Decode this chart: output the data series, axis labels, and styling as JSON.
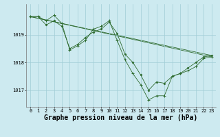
{
  "title": "Graphe pression niveau de la mer (hPa)",
  "background_color": "#cdeaf0",
  "grid_color": "#a0cdd6",
  "line_color": "#2d6a2d",
  "marker_color": "#2d6a2d",
  "xlim": [
    -0.5,
    23.5
  ],
  "ylim": [
    1016.4,
    1020.1
  ],
  "yticks": [
    1017,
    1018,
    1019
  ],
  "xticks": [
    0,
    1,
    2,
    3,
    4,
    5,
    6,
    7,
    8,
    9,
    10,
    11,
    12,
    13,
    14,
    15,
    16,
    17,
    18,
    19,
    20,
    21,
    22,
    23
  ],
  "series": [
    {
      "x": [
        0,
        1,
        2,
        3,
        4,
        5,
        6,
        7,
        8,
        9,
        10,
        11,
        12,
        13,
        14,
        15,
        16,
        17,
        18,
        19,
        20,
        21,
        22,
        23
      ],
      "y": [
        1019.65,
        1019.65,
        1019.5,
        1019.7,
        1019.4,
        1018.45,
        1018.6,
        1018.8,
        1019.2,
        1019.3,
        1019.5,
        1018.8,
        1018.1,
        1017.6,
        1017.2,
        1016.65,
        1016.8,
        1016.8,
        1017.5,
        1017.6,
        1017.7,
        1017.85,
        1018.15,
        1018.2
      ],
      "marker": "+"
    },
    {
      "x": [
        0,
        1,
        2,
        3,
        4,
        5,
        6,
        7,
        8,
        9,
        10,
        11,
        12,
        13,
        14,
        15,
        16,
        17,
        18,
        19,
        20,
        21,
        22,
        23
      ],
      "y": [
        1019.65,
        1019.65,
        1019.35,
        1019.5,
        1019.3,
        1018.5,
        1018.65,
        1018.9,
        1019.1,
        1019.2,
        1019.45,
        1019.05,
        1018.3,
        1018.0,
        1017.55,
        1017.0,
        1017.3,
        1017.25,
        1017.5,
        1017.6,
        1017.8,
        1018.0,
        1018.2,
        1018.25
      ],
      "marker": "D"
    },
    {
      "x": [
        0,
        23
      ],
      "y": [
        1019.65,
        1018.2
      ],
      "marker": null
    },
    {
      "x": [
        0,
        23
      ],
      "y": [
        1019.65,
        1018.25
      ],
      "marker": null
    }
  ],
  "title_fontsize": 7,
  "tick_fontsize": 5,
  "font_family": "monospace"
}
